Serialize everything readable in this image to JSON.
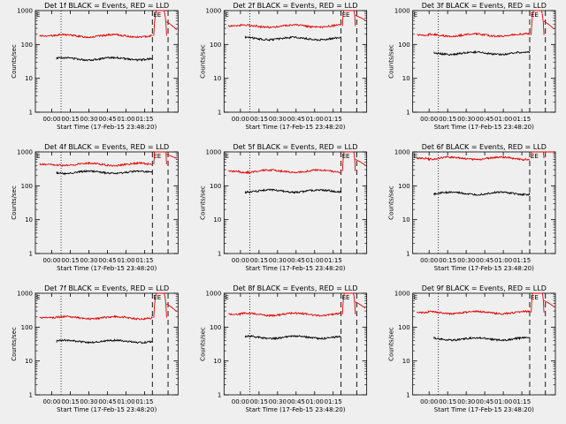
{
  "chart_data": {
    "type": "line",
    "y_scale": "log",
    "ylim": [
      1,
      1000
    ],
    "y_ticks": [
      1,
      10,
      100,
      1000
    ],
    "y_tick_labels": [
      "1",
      "10",
      "100",
      "1000"
    ],
    "x_ticks": [
      "00:00",
      "00:15",
      "00:30",
      "00:45",
      "01:00",
      "01:15"
    ],
    "xlabel": "Start Time (17-Feb-15 23:48:20)",
    "ylabel": "Counts/sec",
    "colors": {
      "events": "#000000",
      "lld": "#e00000",
      "background": "#efefef"
    },
    "panels": [
      {
        "title": "Det 1f BLACK = Events, RED = LLD",
        "flag": "E",
        "marker_label": "EE",
        "events_level": 38,
        "lld_level": 180,
        "tail_label": ""
      },
      {
        "title": "Det 2f BLACK = Events, RED = LLD",
        "flag": "E",
        "marker_label": "EE",
        "events_level": 150,
        "lld_level": 350,
        "tail_label": ""
      },
      {
        "title": "Det 3f BLACK = Events, RED = LLD",
        "flag": "E",
        "marker_label": "EE",
        "events_level": 55,
        "lld_level": 190,
        "tail_label": ""
      },
      {
        "title": "Det 4f BLACK = Events, RED = LLD",
        "flag": "E",
        "marker_label": "EE",
        "events_level": 250,
        "lld_level": 430,
        "tail_label": ""
      },
      {
        "title": "Det 5f BLACK = Events, RED = LLD",
        "flag": "E",
        "marker_label": "EE",
        "events_level": 70,
        "lld_level": 270,
        "tail_label": ""
      },
      {
        "title": "Det 6f BLACK = Events, RED = LLD",
        "flag": "E",
        "marker_label": "EE",
        "events_level": 60,
        "lld_level": 650,
        "tail_label": ""
      },
      {
        "title": "Det 7f BLACK = Events, RED = LLD",
        "flag": "E",
        "marker_label": "EE",
        "events_level": 38,
        "lld_level": 190,
        "tail_label": ""
      },
      {
        "title": "Det 8f BLACK = Events, RED = LLD",
        "flag": "E",
        "marker_label": "EE",
        "events_level": 50,
        "lld_level": 240,
        "tail_label": ""
      },
      {
        "title": "Det 9f BLACK = Events, RED = LLD",
        "flag": "E",
        "marker_label": "EE",
        "events_level": 45,
        "lld_level": 270,
        "tail_label": ""
      }
    ]
  }
}
